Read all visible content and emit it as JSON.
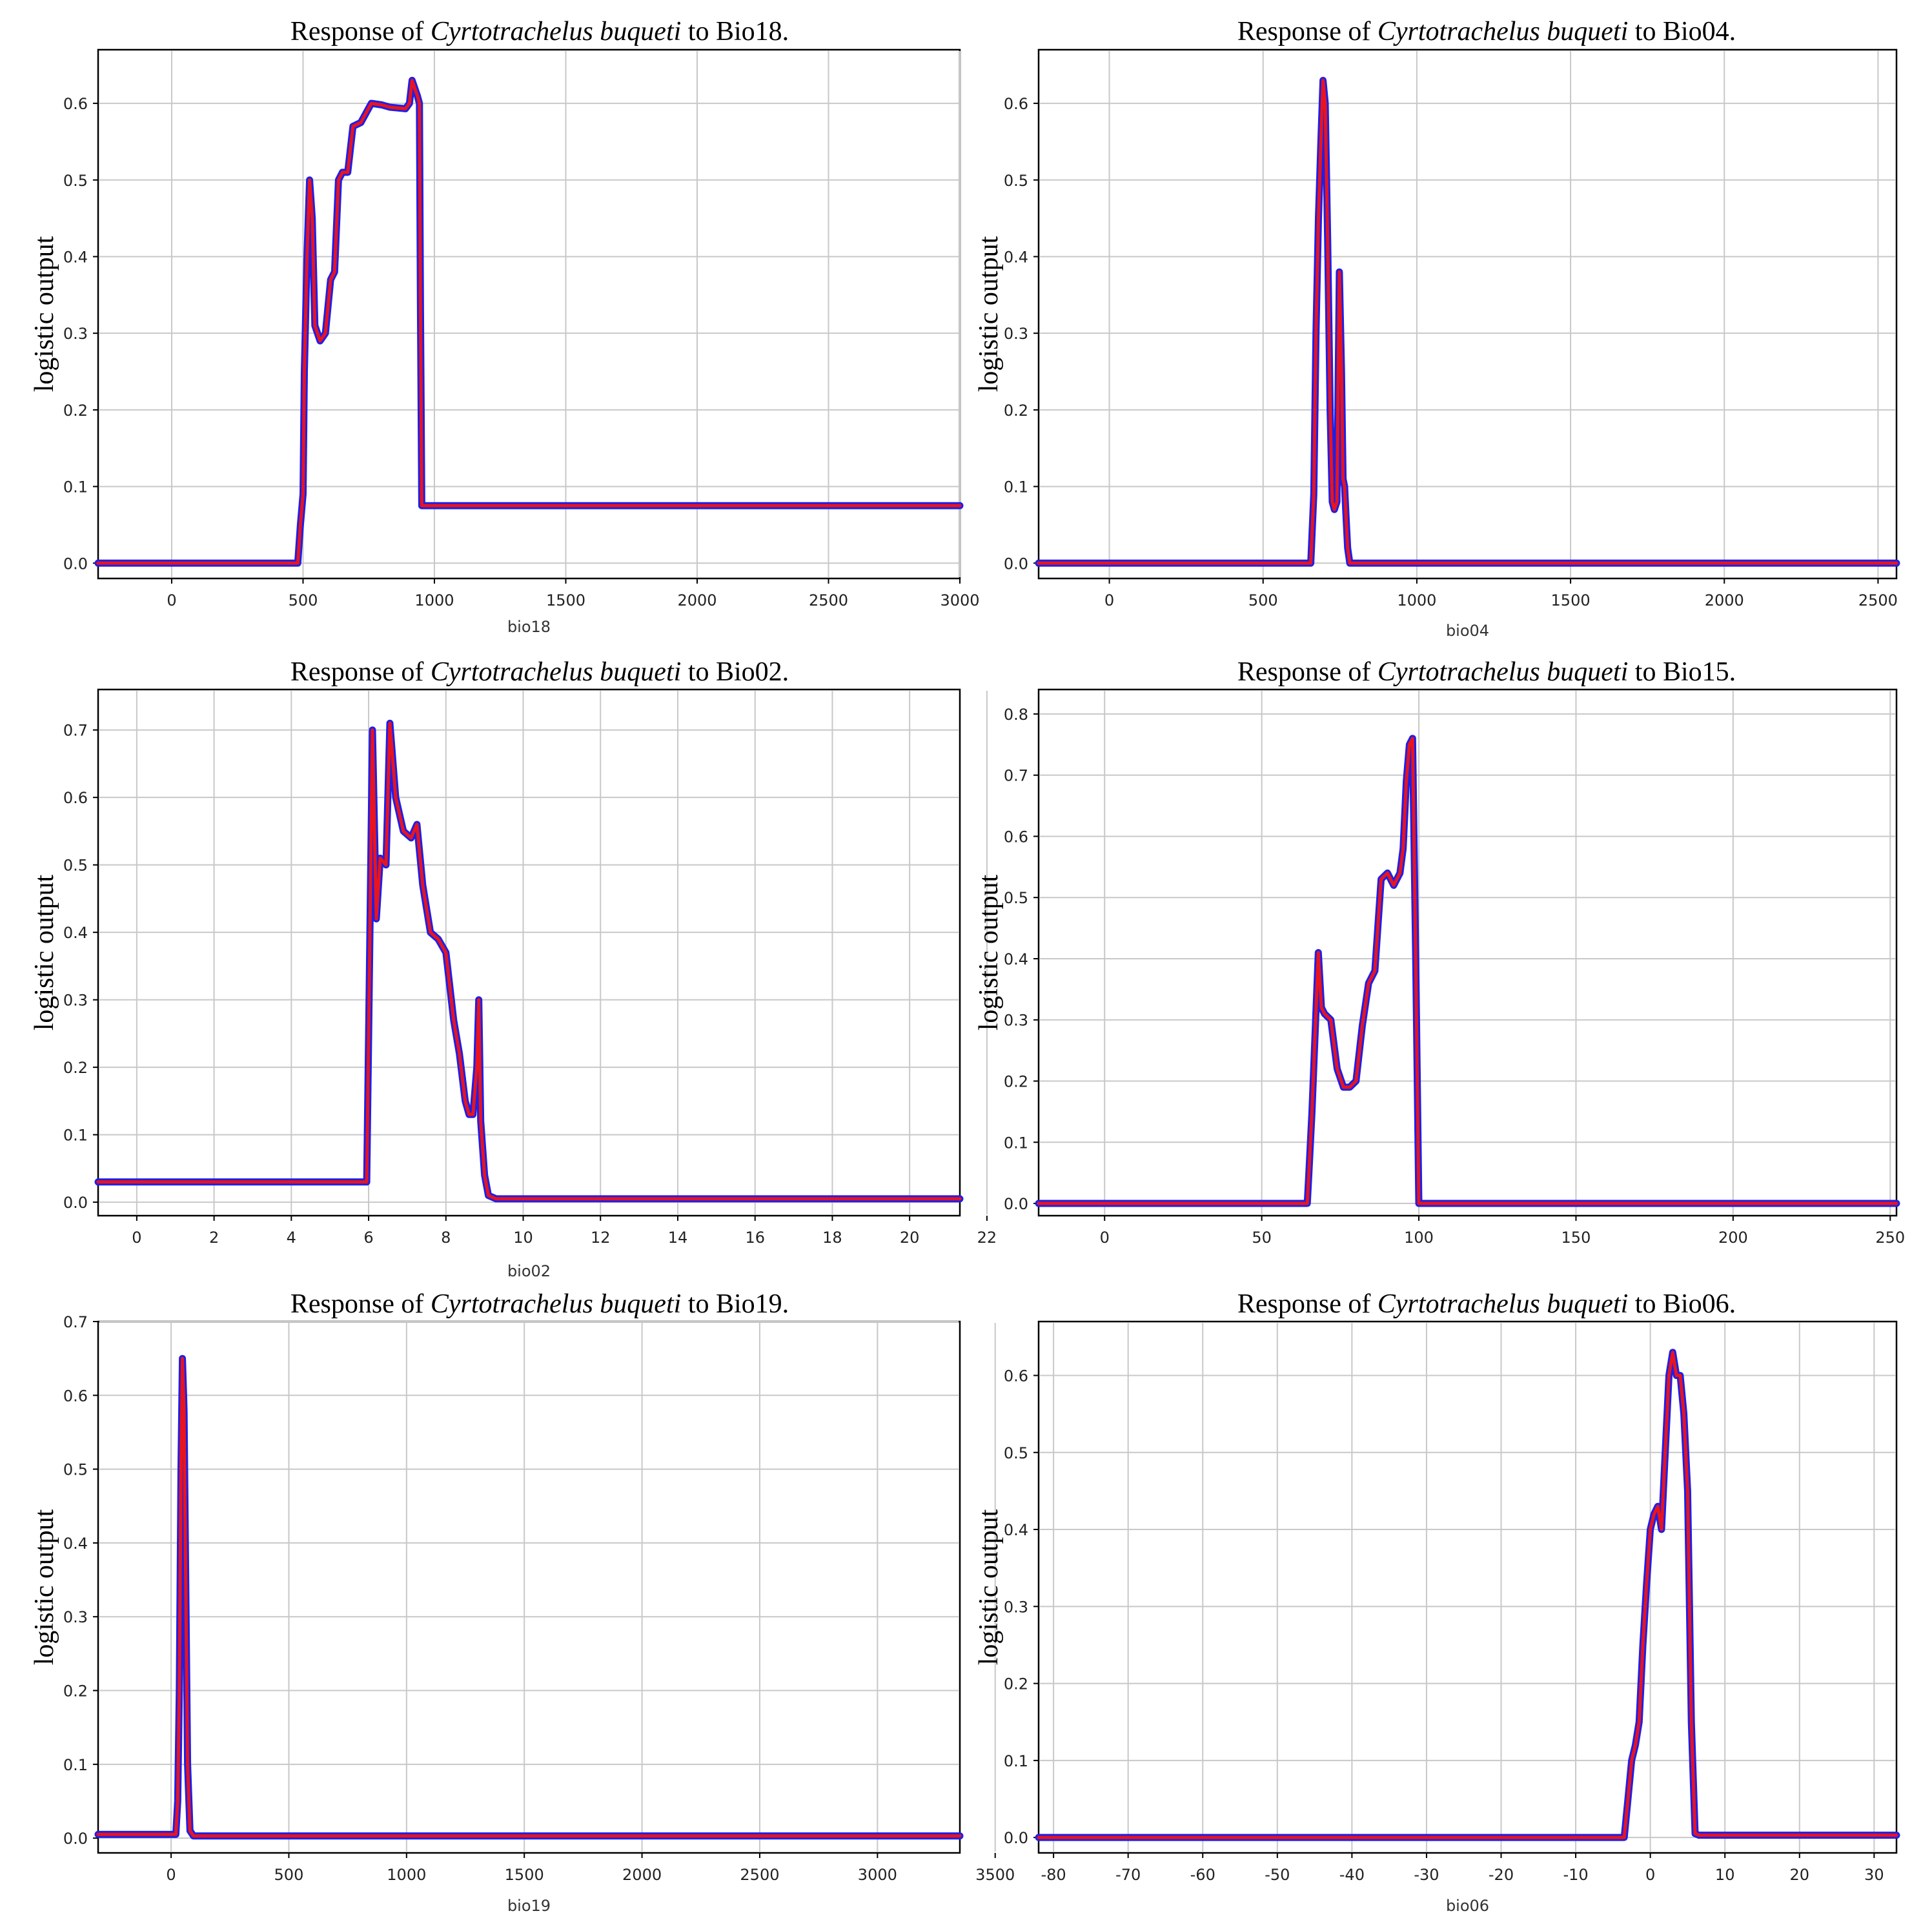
{
  "chart_data": [
    {
      "type": "line",
      "title_prefix": "Response of",
      "species": "Cyrtotrachelus buqueti",
      "title_suffix": "to Bio18.",
      "xlabel": "bio18",
      "ylabel": "logistic output",
      "xlim": [
        -280,
        3000
      ],
      "ylim": [
        -0.02,
        0.67
      ],
      "xticks": [
        0,
        500,
        1000,
        1500,
        2000,
        2500,
        3000
      ],
      "yticks": [
        0.0,
        0.1,
        0.2,
        0.3,
        0.4,
        0.5,
        0.6
      ],
      "grid": true,
      "colors": {
        "mean": "#e8141e",
        "band": "#1f1fe6"
      },
      "series": [
        {
          "x": [
            -280,
            480,
            490,
            500,
            505,
            515,
            525,
            535,
            545,
            565,
            585,
            605,
            620,
            635,
            650,
            670,
            690,
            720,
            760,
            800,
            830,
            860,
            890,
            905,
            915,
            925,
            935,
            943,
            947,
            952,
            960,
            1000,
            1500,
            2000,
            2500,
            3000
          ],
          "y": [
            0.0,
            0.0,
            0.05,
            0.09,
            0.25,
            0.4,
            0.5,
            0.45,
            0.31,
            0.29,
            0.3,
            0.37,
            0.38,
            0.5,
            0.51,
            0.51,
            0.57,
            0.575,
            0.6,
            0.598,
            0.595,
            0.594,
            0.593,
            0.6,
            0.63,
            0.62,
            0.61,
            0.6,
            0.33,
            0.075,
            0.075,
            0.075,
            0.075,
            0.075,
            0.075,
            0.075
          ]
        }
      ]
    },
    {
      "type": "line",
      "title_prefix": "Response of",
      "species": "Cyrtotrachelus buqueti",
      "title_suffix": "to Bio04.",
      "xlabel": "bio04",
      "ylabel": "logistic output",
      "xlim": [
        -230,
        2560
      ],
      "ylim": [
        -0.02,
        0.67
      ],
      "xticks": [
        0,
        500,
        1000,
        1500,
        2000,
        2500
      ],
      "yticks": [
        0.0,
        0.1,
        0.2,
        0.3,
        0.4,
        0.5,
        0.6
      ],
      "grid": true,
      "colors": {
        "mean": "#e8141e",
        "band": "#1f1fe6"
      },
      "series": [
        {
          "x": [
            -230,
            655,
            665,
            672,
            680,
            688,
            695,
            702,
            710,
            718,
            725,
            732,
            740,
            748,
            755,
            760,
            765,
            770,
            775,
            782,
            790,
            1000,
            1500,
            2000,
            2560
          ],
          "y": [
            0.0,
            0.0,
            0.09,
            0.3,
            0.45,
            0.55,
            0.63,
            0.6,
            0.42,
            0.2,
            0.08,
            0.07,
            0.08,
            0.38,
            0.25,
            0.11,
            0.1,
            0.06,
            0.02,
            0.0,
            0.0,
            0.0,
            0.0,
            0.0,
            0.0
          ]
        }
      ]
    },
    {
      "type": "line",
      "title_prefix": "Response of",
      "species": "Cyrtotrachelus buqueti",
      "title_suffix": "to Bio02.",
      "xlabel": "bio02",
      "ylabel": "logistic output",
      "xlim": [
        -1.0,
        21.3
      ],
      "ylim": [
        -0.02,
        0.76
      ],
      "xticks": [
        0,
        2,
        4,
        6,
        8,
        10,
        12,
        14,
        16,
        18,
        20,
        22
      ],
      "yticks": [
        0.0,
        0.1,
        0.2,
        0.3,
        0.4,
        0.5,
        0.6,
        0.7
      ],
      "grid": true,
      "colors": {
        "mean": "#e8141e",
        "band": "#1f1fe6"
      },
      "series": [
        {
          "x": [
            -1.0,
            5.95,
            6.0,
            6.05,
            6.1,
            6.2,
            6.3,
            6.45,
            6.55,
            6.7,
            6.9,
            7.1,
            7.25,
            7.4,
            7.6,
            7.8,
            8.0,
            8.2,
            8.35,
            8.5,
            8.6,
            8.7,
            8.8,
            8.85,
            8.9,
            9.0,
            9.1,
            9.3,
            10,
            15,
            21.3
          ],
          "y": [
            0.03,
            0.03,
            0.25,
            0.48,
            0.7,
            0.42,
            0.51,
            0.5,
            0.71,
            0.6,
            0.55,
            0.54,
            0.56,
            0.47,
            0.4,
            0.39,
            0.37,
            0.27,
            0.22,
            0.15,
            0.13,
            0.13,
            0.2,
            0.3,
            0.12,
            0.04,
            0.01,
            0.005,
            0.005,
            0.005,
            0.005
          ]
        }
      ]
    },
    {
      "type": "line",
      "title_prefix": "Response of",
      "species": "Cyrtotrachelus buqueti",
      "title_suffix": "to Bio15.",
      "xlabel": "",
      "ylabel": "logistic output",
      "xlim": [
        -21,
        252
      ],
      "ylim": [
        -0.02,
        0.84
      ],
      "xticks": [
        0,
        50,
        100,
        150,
        200,
        250
      ],
      "yticks": [
        0.0,
        0.1,
        0.2,
        0.3,
        0.4,
        0.5,
        0.6,
        0.7,
        0.8
      ],
      "grid": true,
      "colors": {
        "mean": "#e8141e",
        "band": "#1f1fe6"
      },
      "series": [
        {
          "x": [
            -21,
            64.5,
            65,
            66,
            67,
            68,
            69,
            70,
            72,
            74,
            76,
            78,
            80,
            82,
            84,
            86,
            88,
            90,
            92,
            94,
            95,
            96,
            97,
            98,
            99,
            100,
            150,
            200,
            252
          ],
          "y": [
            0.0,
            0.0,
            0.05,
            0.15,
            0.28,
            0.41,
            0.32,
            0.31,
            0.3,
            0.22,
            0.19,
            0.19,
            0.2,
            0.29,
            0.36,
            0.38,
            0.53,
            0.54,
            0.52,
            0.54,
            0.58,
            0.69,
            0.75,
            0.76,
            0.4,
            0.0,
            0.0,
            0.0,
            0.0
          ]
        }
      ]
    },
    {
      "type": "line",
      "title_prefix": "Response of",
      "species": "Cyrtotrachelus buqueti",
      "title_suffix": "to Bio19.",
      "xlabel": "bio19",
      "ylabel": "logistic output",
      "xlim": [
        -310,
        3350
      ],
      "ylim": [
        -0.02,
        0.7
      ],
      "xticks": [
        0,
        500,
        1000,
        1500,
        2000,
        2500,
        3000,
        3500
      ],
      "yticks": [
        0.0,
        0.1,
        0.2,
        0.3,
        0.4,
        0.5,
        0.6,
        0.7
      ],
      "grid": true,
      "colors": {
        "mean": "#e8141e",
        "band": "#1f1fe6"
      },
      "series": [
        {
          "x": [
            -310,
            20,
            28,
            35,
            42,
            48,
            55,
            62,
            70,
            80,
            95,
            500,
            1000,
            2000,
            3000,
            3350
          ],
          "y": [
            0.005,
            0.005,
            0.05,
            0.2,
            0.5,
            0.65,
            0.58,
            0.35,
            0.1,
            0.01,
            0.003,
            0.003,
            0.003,
            0.003,
            0.003,
            0.003
          ]
        }
      ]
    },
    {
      "type": "line",
      "title_prefix": "Response of",
      "species": "Cyrtotrachelus buqueti",
      "title_suffix": "to Bio06.",
      "xlabel": "bio06",
      "ylabel": "logistic output",
      "xlim": [
        -82,
        33
      ],
      "ylim": [
        -0.02,
        0.67
      ],
      "xticks": [
        -80,
        -70,
        -60,
        -50,
        -40,
        -30,
        -20,
        -10,
        0,
        10,
        20,
        30
      ],
      "yticks": [
        0.0,
        0.1,
        0.2,
        0.3,
        0.4,
        0.5,
        0.6
      ],
      "grid": true,
      "colors": {
        "mean": "#e8141e",
        "band": "#1f1fe6"
      },
      "series": [
        {
          "x": [
            -82,
            -3.5,
            -3,
            -2.5,
            -2,
            -1.5,
            -1,
            -0.5,
            0,
            0.5,
            1,
            1.5,
            2,
            2.5,
            3,
            3.5,
            4,
            4.5,
            5,
            5.5,
            6,
            6.5,
            10,
            20,
            33
          ],
          "y": [
            0.0,
            0.0,
            0.05,
            0.1,
            0.12,
            0.15,
            0.25,
            0.33,
            0.4,
            0.42,
            0.43,
            0.4,
            0.5,
            0.6,
            0.63,
            0.6,
            0.6,
            0.55,
            0.45,
            0.15,
            0.005,
            0.003,
            0.003,
            0.003,
            0.003
          ]
        }
      ]
    }
  ]
}
